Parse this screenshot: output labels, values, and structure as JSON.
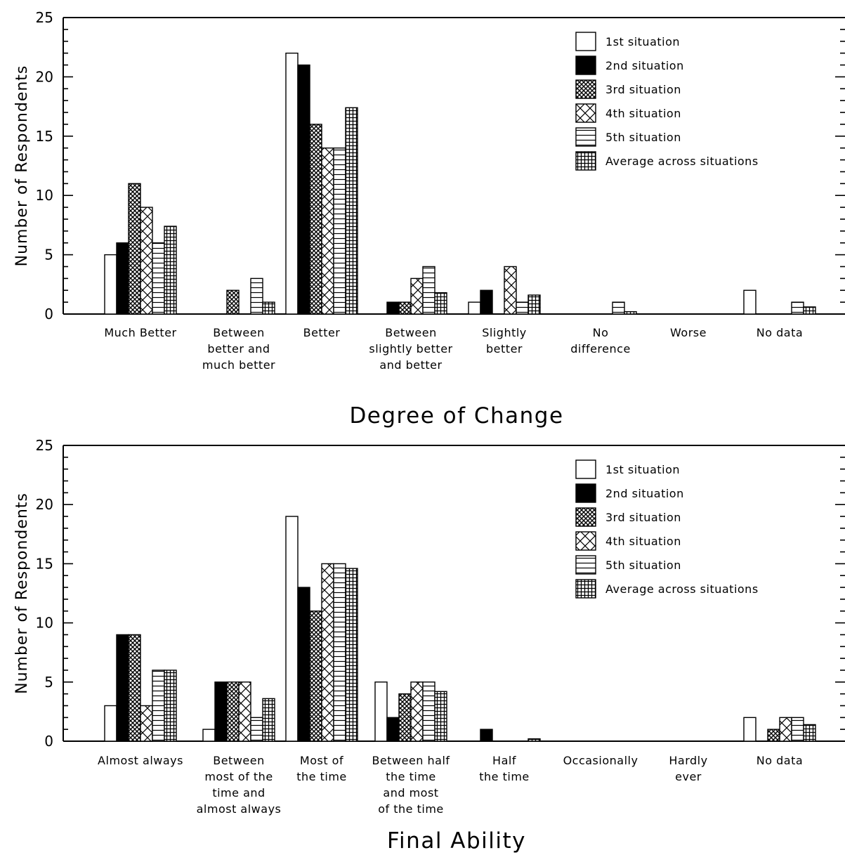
{
  "series_styles": [
    {
      "fill": "#ffffff",
      "pattern": "none"
    },
    {
      "fill": "#000000",
      "pattern": "solid"
    },
    {
      "fill": "#000000",
      "pattern": "dense-crosshatch"
    },
    {
      "fill": "#000000",
      "pattern": "diagonal-crosshatch"
    },
    {
      "fill": "#000000",
      "pattern": "horizontal-lines"
    },
    {
      "fill": "#000000",
      "pattern": "grid"
    }
  ],
  "chart_data": [
    {
      "type": "bar",
      "xlabel": "Degree of Change",
      "ylabel": "Number of Respondents",
      "ylim": [
        0,
        25
      ],
      "yticks": [
        0,
        5,
        10,
        15,
        20,
        25
      ],
      "grid": false,
      "legend_position": "top-right",
      "categories": [
        [
          "Much Better"
        ],
        [
          "Between",
          "better and",
          "much better"
        ],
        [
          "Better"
        ],
        [
          "Between",
          "slightly better",
          "and better"
        ],
        [
          "Slightly",
          "better"
        ],
        [
          "No",
          "difference"
        ],
        [
          "Worse"
        ],
        [
          "No data"
        ]
      ],
      "series": [
        {
          "name": "1st situation",
          "values": [
            5,
            0,
            22,
            0,
            1,
            0,
            0,
            2
          ]
        },
        {
          "name": "2nd situation",
          "values": [
            6,
            0,
            21,
            1,
            2,
            0,
            0,
            0
          ]
        },
        {
          "name": "3rd situation",
          "values": [
            11,
            2,
            16,
            1,
            0,
            0,
            0,
            0
          ]
        },
        {
          "name": "4th situation",
          "values": [
            9,
            0,
            14,
            3,
            4,
            0,
            0,
            0
          ]
        },
        {
          "name": "5th situation",
          "values": [
            6,
            3,
            14,
            4,
            1,
            1,
            0,
            1
          ]
        },
        {
          "name": "Average across situations",
          "values": [
            7.4,
            1,
            17.4,
            1.8,
            1.6,
            0.2,
            0,
            0.6
          ]
        }
      ]
    },
    {
      "type": "bar",
      "xlabel": "Final Ability",
      "ylabel": "Number of Respondents",
      "ylim": [
        0,
        25
      ],
      "yticks": [
        0,
        5,
        10,
        15,
        20,
        25
      ],
      "grid": false,
      "legend_position": "top-right",
      "categories": [
        [
          "Almost always"
        ],
        [
          "Between",
          "most of the",
          "time and",
          "almost always"
        ],
        [
          "Most of",
          "the time"
        ],
        [
          "Between half",
          "the time",
          "and most",
          "of the time"
        ],
        [
          "Half",
          "the time"
        ],
        [
          "Occasionally"
        ],
        [
          "Hardly",
          "ever"
        ],
        [
          "No data"
        ]
      ],
      "series": [
        {
          "name": "1st situation",
          "values": [
            3,
            1,
            19,
            5,
            0,
            0,
            0,
            2
          ]
        },
        {
          "name": "2nd situation",
          "values": [
            9,
            5,
            13,
            2,
            1,
            0,
            0,
            0
          ]
        },
        {
          "name": "3rd situation",
          "values": [
            9,
            5,
            11,
            4,
            0,
            0,
            0,
            1
          ]
        },
        {
          "name": "4th situation",
          "values": [
            3,
            5,
            15,
            5,
            0,
            0,
            0,
            2
          ]
        },
        {
          "name": "5th situation",
          "values": [
            6,
            2,
            15,
            5,
            0,
            0,
            0,
            2
          ]
        },
        {
          "name": "Average across situations",
          "values": [
            6,
            3.6,
            14.6,
            4.2,
            0.2,
            0,
            0,
            1.4
          ]
        }
      ]
    }
  ]
}
